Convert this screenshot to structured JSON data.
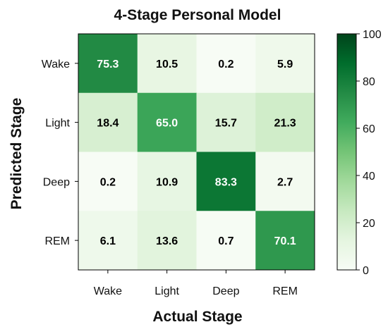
{
  "chart_data": {
    "type": "heatmap",
    "title": "4-Stage Personal Model",
    "xlabel": "Actual Stage",
    "ylabel": "Predicted Stage",
    "x_categories": [
      "Wake",
      "Light",
      "Deep",
      "REM"
    ],
    "y_categories": [
      "Wake",
      "Light",
      "Deep",
      "REM"
    ],
    "values": [
      [
        75.3,
        10.5,
        0.2,
        5.9
      ],
      [
        18.4,
        65.0,
        15.7,
        21.3
      ],
      [
        0.2,
        10.9,
        83.3,
        2.7
      ],
      [
        6.1,
        13.6,
        0.7,
        70.1
      ]
    ],
    "value_labels": [
      [
        "75.3",
        "10.5",
        "0.2",
        "5.9"
      ],
      [
        "18.4",
        "65.0",
        "15.7",
        "21.3"
      ],
      [
        "0.2",
        "10.9",
        "83.3",
        "2.7"
      ],
      [
        "6.1",
        "13.6",
        "0.7",
        "70.1"
      ]
    ],
    "colorbar": {
      "range": [
        0,
        100
      ],
      "ticks": [
        0,
        20,
        40,
        60,
        80,
        100
      ],
      "tick_labels": [
        "0",
        "20",
        "40",
        "60",
        "80",
        "100"
      ],
      "colormap": "Greens",
      "low_color": "#f7fcf5",
      "high_color": "#00441b"
    }
  }
}
